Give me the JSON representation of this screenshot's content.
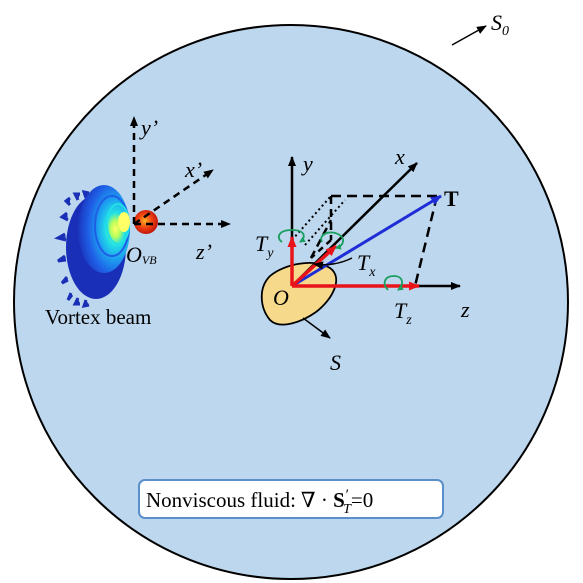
{
  "labels": {
    "s0": "S",
    "s0_sub": "0",
    "y_prime": "y",
    "x_prime": "x",
    "z_prime": "z",
    "prime": "’",
    "o_vb": "O",
    "o_vb_sub": "VB",
    "vortex_beam": "Vortex beam",
    "y": "y",
    "x": "x",
    "z": "z",
    "T": "T",
    "Ty": "T",
    "Ty_sub": "y",
    "Tx": "T",
    "Tx_sub": "x",
    "Tz": "T",
    "Tz_sub": "z",
    "O": "O",
    "S": "S"
  },
  "fluid_box": {
    "prefix": "Nonviscous fluid:",
    "nabla": "∇",
    "dot": " · ",
    "S": "S",
    "S_prime": "′",
    "S_sub": "T",
    "equals": "=0"
  },
  "colors": {
    "fluid": "#bdd7ee",
    "particle": "#f7d98c",
    "red_arrow": "#e8141a",
    "blue_arrow": "#1f2dd6",
    "green_torque": "#1a9e5e",
    "box_border": "#5b8fc9"
  }
}
